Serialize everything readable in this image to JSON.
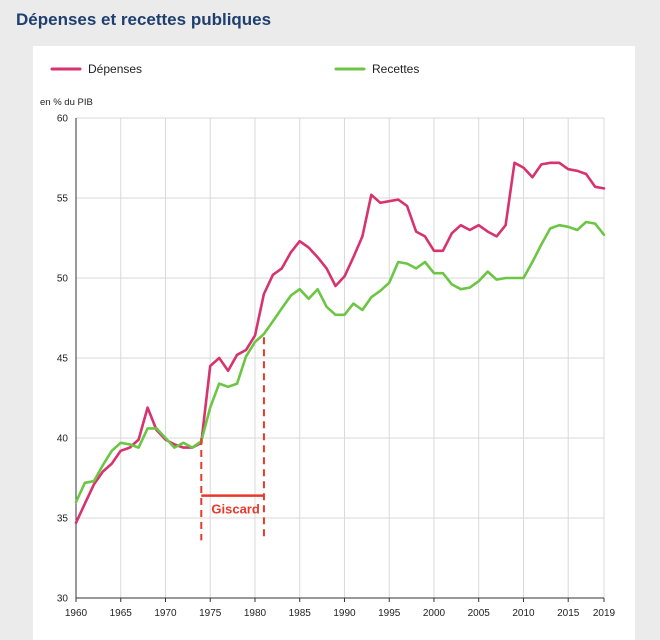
{
  "page": {
    "title": "Dépenses et recettes publiques"
  },
  "chart_data": {
    "type": "line",
    "title": "Dépenses et recettes publiques",
    "ylabel": "en % du PIB",
    "xlabel": "",
    "xlim": [
      1960,
      2019
    ],
    "ylim": [
      30,
      60
    ],
    "x_ticks": [
      1960,
      1965,
      1970,
      1975,
      1980,
      1985,
      1990,
      1995,
      2000,
      2005,
      2010,
      2015,
      2019
    ],
    "y_ticks": [
      30,
      35,
      40,
      45,
      50,
      55,
      60
    ],
    "grid": true,
    "legend_position": "top",
    "x": [
      1960,
      1961,
      1962,
      1963,
      1964,
      1965,
      1966,
      1967,
      1968,
      1969,
      1970,
      1971,
      1972,
      1973,
      1974,
      1975,
      1976,
      1977,
      1978,
      1979,
      1980,
      1981,
      1982,
      1983,
      1984,
      1985,
      1986,
      1987,
      1988,
      1989,
      1990,
      1991,
      1992,
      1993,
      1994,
      1995,
      1996,
      1997,
      1998,
      1999,
      2000,
      2001,
      2002,
      2003,
      2004,
      2005,
      2006,
      2007,
      2008,
      2009,
      2010,
      2011,
      2012,
      2013,
      2014,
      2015,
      2016,
      2017,
      2018,
      2019
    ],
    "series": [
      {
        "name": "Dépenses",
        "color": "#d6336f",
        "values": [
          34.7,
          35.9,
          37.1,
          37.9,
          38.4,
          39.2,
          39.4,
          39.9,
          41.9,
          40.5,
          39.9,
          39.6,
          39.4,
          39.4,
          39.7,
          44.5,
          45.0,
          44.2,
          45.2,
          45.5,
          46.4,
          49.0,
          50.2,
          50.6,
          51.6,
          52.3,
          51.9,
          51.3,
          50.6,
          49.5,
          50.1,
          51.3,
          52.6,
          55.2,
          54.7,
          54.8,
          54.9,
          54.5,
          52.9,
          52.6,
          51.7,
          51.7,
          52.8,
          53.3,
          53.0,
          53.3,
          52.9,
          52.6,
          53.3,
          57.2,
          56.9,
          56.3,
          57.1,
          57.2,
          57.2,
          56.8,
          56.7,
          56.5,
          55.7,
          55.6
        ],
        "values_note": ""
      },
      {
        "name": "Recettes",
        "color": "#6cc644",
        "values": [
          36.0,
          37.2,
          37.3,
          38.3,
          39.2,
          39.7,
          39.6,
          39.4,
          40.6,
          40.6,
          40.0,
          39.4,
          39.7,
          39.4,
          39.8,
          41.9,
          43.4,
          43.2,
          43.4,
          45.1,
          46.0,
          46.5,
          47.3,
          48.1,
          48.9,
          49.3,
          48.7,
          49.3,
          48.2,
          47.7,
          47.7,
          48.4,
          48.0,
          48.8,
          49.2,
          49.7,
          51.0,
          50.9,
          50.6,
          51.0,
          50.3,
          50.3,
          49.6,
          49.3,
          49.4,
          49.8,
          50.4,
          49.9,
          50.0,
          50.0,
          50.0,
          51.0,
          52.1,
          53.1,
          53.3,
          53.2,
          53.0,
          53.5,
          53.4,
          52.7
        ],
        "values_note": ""
      }
    ],
    "annotations": [
      {
        "label": "Giscard",
        "start_year": 1974,
        "end_year": 1981,
        "color": "#e8392a",
        "line_bottom_value": 33.6,
        "start_top_value": 40.0,
        "end_top_value": 46.3,
        "bracket_value": 36.4
      }
    ]
  }
}
